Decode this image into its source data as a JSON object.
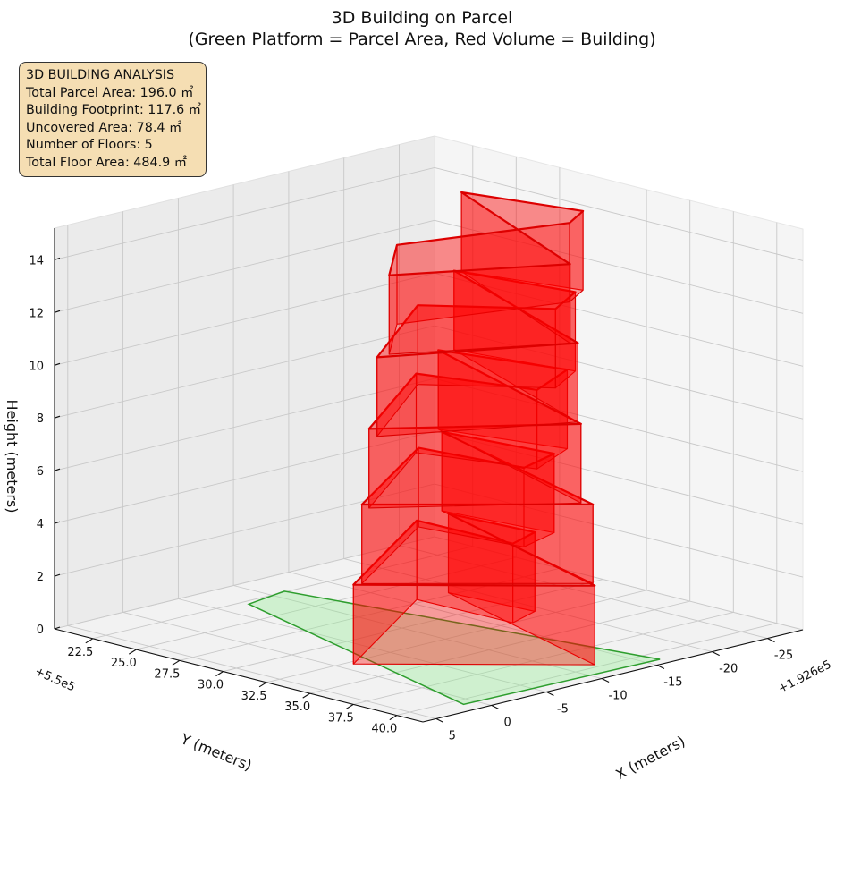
{
  "chart_data": {
    "type": "3d-polygon",
    "title_lines": [
      "3D Building on Parcel",
      "(Green Platform = Parcel Area, Red Volume = Building)"
    ],
    "xlabel": "X (meters)",
    "ylabel": "Y (meters)",
    "zlabel": "Height (meters)",
    "x_offset_label": "+1.926e5",
    "y_offset_label": "+5.5e5",
    "x_ticks": [
      "22.5",
      "25.0",
      "27.5",
      "30.0",
      "32.5",
      "35.0",
      "37.5",
      "40.0"
    ],
    "y_ticks": [
      "-25",
      "-20",
      "-15",
      "-10",
      "-5",
      "0",
      "5"
    ],
    "z_ticks": [
      "0",
      "2",
      "4",
      "6",
      "8",
      "10",
      "12",
      "14"
    ],
    "x_tick_values": [
      22.5,
      25.0,
      27.5,
      30.0,
      32.5,
      35.0,
      37.5,
      40.0
    ],
    "y_tick_values": [
      -25,
      -20,
      -15,
      -10,
      -5,
      0,
      5
    ],
    "z_tick_values": [
      0,
      2,
      4,
      6,
      8,
      10,
      12,
      14
    ],
    "xlim": [
      20.3,
      41.5
    ],
    "ylim": [
      -28.2,
      6.2
    ],
    "zlim": [
      0,
      15.2
    ],
    "grid": true,
    "view": {
      "elev_deg": 30,
      "azim_deg": 45
    },
    "parcel": {
      "label": "Parcel",
      "area_m2": 196.0,
      "color": "#90ee90",
      "edge_color": "#2e9e2e",
      "outline": [
        [
          40.9,
          -16.2
        ],
        [
          22.4,
          -11.3
        ],
        [
          22.9,
          -7.3
        ],
        [
          40.6,
          1.1
        ]
      ]
    },
    "building": {
      "label": "Building",
      "color": "#ff0000",
      "footprint_area_m2": 117.6,
      "floors": 5,
      "floor_height_m": 3.0,
      "floor_outlines": [
        [
          [
            39.7,
            -12.2
          ],
          [
            32.8,
            -1.2
          ],
          [
            27.1,
            -15.9
          ],
          [
            32.5,
            -16.1
          ],
          [
            31.8,
            -19.2
          ],
          [
            27.2,
            -18.6
          ]
        ],
        [
          [
            39.4,
            -12.5
          ],
          [
            32.9,
            -1.8
          ],
          [
            27.9,
            -14.8
          ],
          [
            33.2,
            -16.0
          ],
          [
            32.4,
            -20.0
          ],
          [
            26.7,
            -18.8
          ]
        ],
        [
          [
            38.9,
            -12.2
          ],
          [
            33.5,
            -1.5
          ],
          [
            28.4,
            -13.8
          ],
          [
            33.7,
            -16.4
          ],
          [
            32.2,
            -21.5
          ],
          [
            26.3,
            -19.1
          ]
        ],
        [
          [
            38.6,
            -12.4
          ],
          [
            34.6,
            -0.5
          ],
          [
            29.7,
            -11.9
          ],
          [
            34.0,
            -17.6
          ],
          [
            32.6,
            -21.6
          ],
          [
            26.7,
            -19.9
          ]
        ],
        [
          [
            38.4,
            -12.0
          ],
          [
            34.6,
            -1.6
          ],
          [
            31.3,
            -7.5
          ],
          [
            33.6,
            -19.5
          ],
          [
            32.6,
            -22.3
          ],
          [
            27.0,
            -20.1
          ]
        ]
      ]
    }
  },
  "info": {
    "heading": "3D BUILDING ANALYSIS",
    "lines": [
      "Total Parcel Area: 196.0 ㎡",
      "Building Footprint: 117.6 ㎡",
      "Uncovered Area: 78.4 ㎡",
      "Number of Floors: 5",
      "Total Floor Area: 484.9 ㎡"
    ]
  }
}
